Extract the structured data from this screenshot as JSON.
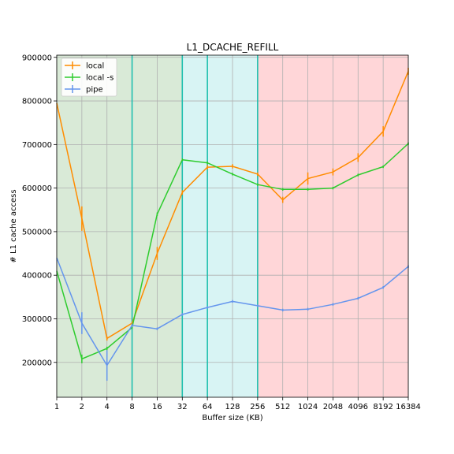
{
  "chart_data": {
    "type": "line",
    "title": "L1_DCACHE_REFILL",
    "xlabel": "Buffer size (KB)",
    "ylabel": "# L1 cache access",
    "x_scale": "log2",
    "x": [
      1,
      2,
      4,
      8,
      16,
      32,
      64,
      128,
      256,
      512,
      1024,
      2048,
      4096,
      8192,
      16384
    ],
    "x_tick_labels": [
      "1",
      "2",
      "4",
      "8",
      "16",
      "32",
      "64",
      "128",
      "256",
      "512",
      "1024",
      "2048",
      "4096",
      "8192",
      "16384"
    ],
    "xlim": [
      1,
      16384
    ],
    "ylim": [
      120000,
      905000
    ],
    "y_ticks": [
      200000,
      300000,
      400000,
      500000,
      600000,
      700000,
      800000,
      900000
    ],
    "y_tick_labels": [
      "200000",
      "300000",
      "400000",
      "500000",
      "600000",
      "700000",
      "800000",
      "900000"
    ],
    "grid": true,
    "legend_position": "top-left",
    "regions": [
      {
        "from": 1,
        "to": 32,
        "color": "#d9ead7"
      },
      {
        "from": 32,
        "to": 256,
        "color": "#d8f4f4"
      },
      {
        "from": 256,
        "to": 16384,
        "color": "#ffd6d8"
      }
    ],
    "vlines": {
      "x": [
        8,
        32,
        64,
        256
      ],
      "color": "#1fbfaf"
    },
    "series": [
      {
        "name": "local",
        "color": "#ff8c00",
        "values": [
          795000,
          530000,
          255000,
          290000,
          450000,
          590000,
          648000,
          650000,
          632000,
          573000,
          622000,
          637000,
          670000,
          730000,
          868000
        ],
        "errors": [
          0,
          28000,
          5000,
          3000,
          15000,
          5000,
          5000,
          5000,
          4000,
          7000,
          14000,
          8000,
          10000,
          12000,
          8000
        ]
      },
      {
        "name": "local -s",
        "color": "#2ecc2e",
        "values": [
          410000,
          208000,
          232000,
          280000,
          540000,
          665000,
          658000,
          632000,
          608000,
          597000,
          597000,
          600000,
          630000,
          649000,
          702000
        ],
        "errors": [
          0,
          10000,
          4000,
          3000,
          4000,
          3000,
          3000,
          3000,
          3000,
          3000,
          3000,
          3000,
          3000,
          3000,
          3000
        ]
      },
      {
        "name": "pipe",
        "color": "#6495ed",
        "values": [
          440000,
          290000,
          193000,
          285000,
          277000,
          310000,
          326000,
          340000,
          330000,
          320000,
          322000,
          333000,
          347000,
          372000,
          420000
        ],
        "errors": [
          0,
          25000,
          35000,
          4000,
          3000,
          3000,
          3000,
          3000,
          3000,
          3000,
          3000,
          3000,
          3000,
          3000,
          3000
        ]
      }
    ]
  }
}
